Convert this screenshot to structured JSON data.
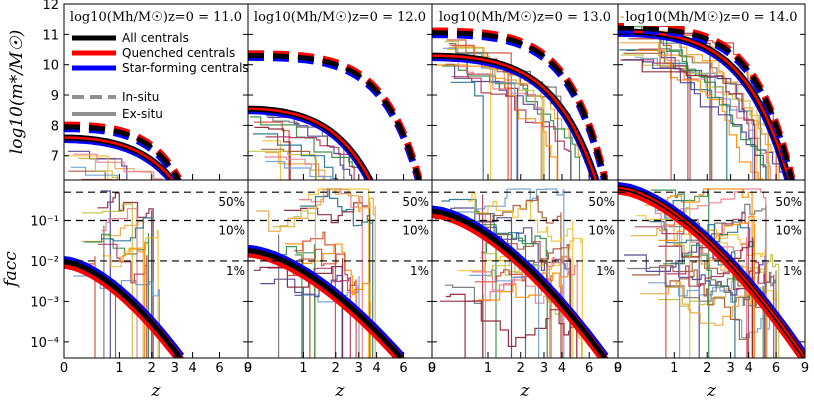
{
  "chart_data": {
    "type": "line",
    "layout": "2 rows x 4 columns, shared x axis per column",
    "panels": [
      {
        "title": "log10(Mh/M☉)z=0 = 11.0",
        "halo_mass": 11.0,
        "centrals_top_logm0": 7.6,
        "insitu_logm0": 7.95,
        "zmax_top": 2.9,
        "facc0": 0.0095,
        "zmax_bottom": 3.3
      },
      {
        "title": "log10(Mh/M☉)z=0 = 12.0",
        "halo_mass": 12.0,
        "centrals_top_logm0": 8.55,
        "insitu_logm0": 10.3,
        "zmax_top": 3.6,
        "facc0": 0.018,
        "zmax_bottom": 5.8
      },
      {
        "title": "log10(Mh/M☉)z=0 = 13.0",
        "halo_mass": 13.0,
        "centrals_top_logm0": 10.3,
        "insitu_logm0": 11.05,
        "zmax_top": 6.6,
        "facc0": 0.17,
        "zmax_bottom": 7.5
      },
      {
        "title": "log10(Mh/M☉)z=0 = 14.0",
        "halo_mass": 14.0,
        "centrals_top_logm0": 11.1,
        "insitu_logm0": 11.2,
        "zmax_top": 7.2,
        "facc0": 0.65,
        "zmax_bottom": 9.0
      }
    ],
    "x": {
      "label": "z",
      "scale": "log(1+z)",
      "range": [
        0,
        9
      ],
      "ticks": [
        "0",
        "1",
        "2",
        "3",
        "4",
        "6",
        "9"
      ],
      "tick_values": [
        0,
        1,
        2,
        3,
        4,
        6,
        9
      ]
    },
    "y_top": {
      "label": "log10(m*/M☉)",
      "range": [
        6.2,
        12
      ],
      "ticks": [
        "7",
        "8",
        "9",
        "10",
        "11",
        "12"
      ]
    },
    "y_bottom": {
      "label": "facc",
      "scale": "log",
      "range": [
        4e-05,
        1
      ],
      "ticks": [
        "10⁻⁴",
        "10⁻³",
        "10⁻²",
        "10⁻¹"
      ]
    },
    "reference_lines": [
      {
        "value": 0.5,
        "label": "50%"
      },
      {
        "value": 0.1,
        "label": "10%"
      },
      {
        "value": 0.01,
        "label": "1%"
      }
    ],
    "series": [
      {
        "name": "All centrals",
        "color": "#000000"
      },
      {
        "name": "Quenched centrals",
        "color": "#ff0000"
      },
      {
        "name": "Star-forming centrals",
        "color": "#0000ff"
      }
    ],
    "line_styles": [
      {
        "name": "In-situ",
        "style": "dashed"
      },
      {
        "name": "Ex-situ",
        "style": "solid"
      }
    ],
    "individual_track_colors": [
      "#e8a33a",
      "#d6452d",
      "#8b1a2f",
      "#4b3a8c",
      "#2f8a3e",
      "#f0c030",
      "#e87a8a",
      "#6a9bd1",
      "#a0522d",
      "#c0c040",
      "#1f6f8b",
      "#b03060",
      "#707070",
      "#ff8c00"
    ]
  }
}
